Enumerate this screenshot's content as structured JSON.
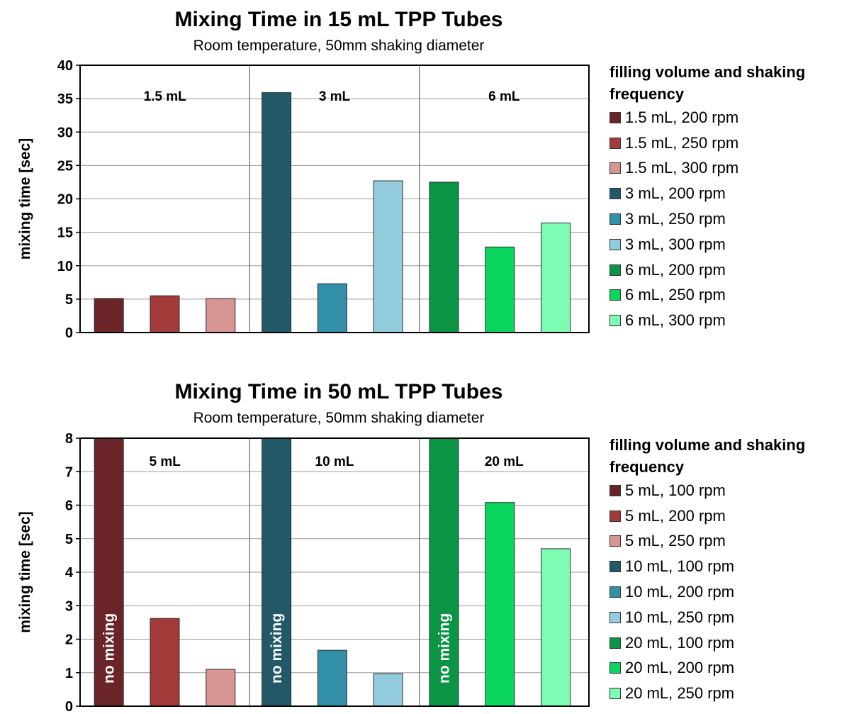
{
  "chart_data": [
    {
      "type": "bar",
      "title": "Mixing Time in 15 mL TPP Tubes",
      "subtitle": "Room temperature, 50mm shaking diameter",
      "xlabel": "",
      "ylabel": "mixing time [sec]",
      "ylim": [
        0,
        40
      ],
      "yticks": [
        "0",
        "5",
        "10",
        "15",
        "20",
        "25",
        "30",
        "35",
        "40"
      ],
      "grid": true,
      "groups": [
        "1.5 mL",
        "3 mL",
        "6 mL"
      ],
      "legend_title": "filling volume and shaking frequency",
      "legend_position": "right",
      "series": [
        {
          "name": "1.5 mL, 200 rpm",
          "group": 0,
          "value": 5.1,
          "color": "#6b2427"
        },
        {
          "name": "1.5 mL, 250 rpm",
          "group": 0,
          "value": 5.5,
          "color": "#a33b3a"
        },
        {
          "name": "1.5 mL, 300 rpm",
          "group": 0,
          "value": 5.1,
          "color": "#d99494"
        },
        {
          "name": "3 mL, 200 rpm",
          "group": 1,
          "value": 35.9,
          "color": "#215968"
        },
        {
          "name": "3 mL, 250 rpm",
          "group": 1,
          "value": 7.3,
          "color": "#328fa8"
        },
        {
          "name": "3 mL, 300 rpm",
          "group": 1,
          "value": 22.7,
          "color": "#93cddd"
        },
        {
          "name": "6 mL, 200 rpm",
          "group": 2,
          "value": 22.5,
          "color": "#0b9444"
        },
        {
          "name": "6 mL, 250 rpm",
          "group": 2,
          "value": 12.8,
          "color": "#0ad55c"
        },
        {
          "name": "6 mL, 300 rpm",
          "group": 2,
          "value": 16.4,
          "color": "#7dfcb3"
        }
      ]
    },
    {
      "type": "bar",
      "title": "Mixing Time in 50 mL TPP Tubes",
      "subtitle": "Room temperature, 50mm shaking diameter",
      "xlabel": "",
      "ylabel": "mixing time [sec]",
      "ylim": [
        0,
        8
      ],
      "yticks": [
        "0",
        "1",
        "2",
        "3",
        "4",
        "5",
        "6",
        "7",
        "8"
      ],
      "grid": true,
      "groups": [
        "5 mL",
        "10 mL",
        "20 mL"
      ],
      "legend_title": "filling volume and shaking frequency",
      "legend_position": "right",
      "series": [
        {
          "name": "5 mL, 100 rpm",
          "group": 0,
          "value": 8,
          "label": "no mixing",
          "color": "#6b2427"
        },
        {
          "name": "5 mL, 200 rpm",
          "group": 0,
          "value": 2.62,
          "color": "#a33b3a"
        },
        {
          "name": "5 mL, 250 rpm",
          "group": 0,
          "value": 1.1,
          "color": "#d99494"
        },
        {
          "name": "10 mL, 100 rpm",
          "group": 1,
          "value": 8,
          "label": "no mixing",
          "color": "#215968"
        },
        {
          "name": "10 mL, 200 rpm",
          "group": 1,
          "value": 1.67,
          "color": "#328fa8"
        },
        {
          "name": "10 mL, 250 rpm",
          "group": 1,
          "value": 0.97,
          "color": "#93cddd"
        },
        {
          "name": "20 mL, 100 rpm",
          "group": 2,
          "value": 8,
          "label": "no mixing",
          "color": "#0b9444"
        },
        {
          "name": "20 mL, 200 rpm",
          "group": 2,
          "value": 6.08,
          "color": "#0ad55c"
        },
        {
          "name": "20 mL, 250 rpm",
          "group": 2,
          "value": 4.7,
          "color": "#7dfcb3"
        }
      ]
    }
  ]
}
